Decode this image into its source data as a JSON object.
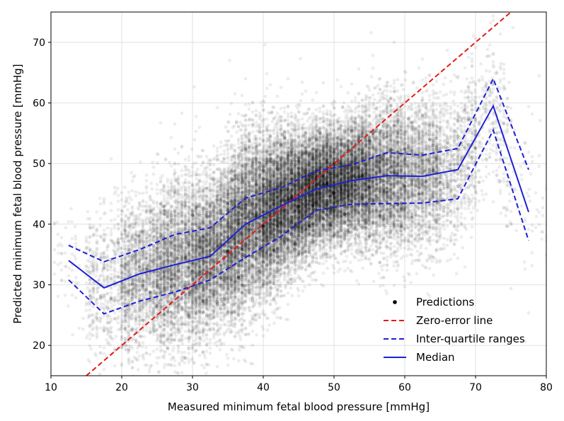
{
  "chart_data": {
    "type": "scatter",
    "xlabel": "Measured minimum fetal blood pressure [mmHg]",
    "ylabel": "Predicted minimum fetal blood pressure [mmHg]",
    "xlim": [
      10,
      80
    ],
    "ylim": [
      15,
      75
    ],
    "xticks": [
      10,
      20,
      30,
      40,
      50,
      60,
      70,
      80
    ],
    "yticks": [
      20,
      30,
      40,
      50,
      60,
      70
    ],
    "grid": true,
    "legend_position": "bottom-right",
    "legend": [
      {
        "label": "Predictions",
        "style": "dot",
        "color": "#000000"
      },
      {
        "label": "Zero-error line",
        "style": "dashed",
        "color": "#e41a1c"
      },
      {
        "label": "Inter-quartile ranges",
        "style": "dashed",
        "color": "#1f1fd6"
      },
      {
        "label": "Median",
        "style": "solid",
        "color": "#1f1fd6"
      }
    ],
    "zero_error_line": {
      "x": [
        15,
        75
      ],
      "y": [
        15,
        75
      ],
      "color": "#e41a1c"
    },
    "series": [
      {
        "name": "Median",
        "x": [
          12.5,
          17.5,
          22.5,
          27.5,
          32.5,
          37.5,
          42.5,
          47.5,
          52.5,
          57.5,
          62.5,
          67.5,
          72.5,
          77.5
        ],
        "y": [
          34.0,
          29.5,
          31.8,
          33.3,
          34.7,
          40.0,
          43.0,
          45.8,
          47.2,
          48.0,
          47.9,
          49.0,
          59.5,
          42.0
        ],
        "style": "solid",
        "color": "#1f1fd6"
      },
      {
        "name": "Inter-quartile ranges",
        "x": [
          12.5,
          17.5,
          22.5,
          27.5,
          32.5,
          37.5,
          42.5,
          47.5,
          52.5,
          57.5,
          62.5,
          67.5,
          72.5,
          77.5
        ],
        "y": [
          36.5,
          33.8,
          35.8,
          38.3,
          39.4,
          44.3,
          46.0,
          48.8,
          49.8,
          51.8,
          51.4,
          52.5,
          64.0,
          49.0
        ],
        "style": "dashed",
        "color": "#1f1fd6"
      },
      {
        "name": "Inter-quartile ranges",
        "x": [
          12.5,
          17.5,
          22.5,
          27.5,
          32.5,
          37.5,
          42.5,
          47.5,
          52.5,
          57.5,
          62.5,
          67.5,
          72.5,
          77.5
        ],
        "y": [
          30.8,
          25.2,
          27.3,
          28.8,
          30.8,
          34.5,
          38.0,
          42.3,
          43.3,
          43.4,
          43.5,
          44.2,
          55.5,
          37.3
        ],
        "style": "dashed",
        "color": "#1f1fd6"
      }
    ],
    "predictions_distribution": {
      "x_bins": [
        12.5,
        17.5,
        22.5,
        27.5,
        32.5,
        37.5,
        42.5,
        47.5,
        52.5,
        57.5,
        62.5,
        67.5,
        72.5,
        77.5
      ],
      "count_per_bin": [
        60,
        500,
        1500,
        2400,
        3200,
        4200,
        5000,
        5000,
        4200,
        2800,
        1800,
        800,
        300,
        60
      ]
    }
  }
}
